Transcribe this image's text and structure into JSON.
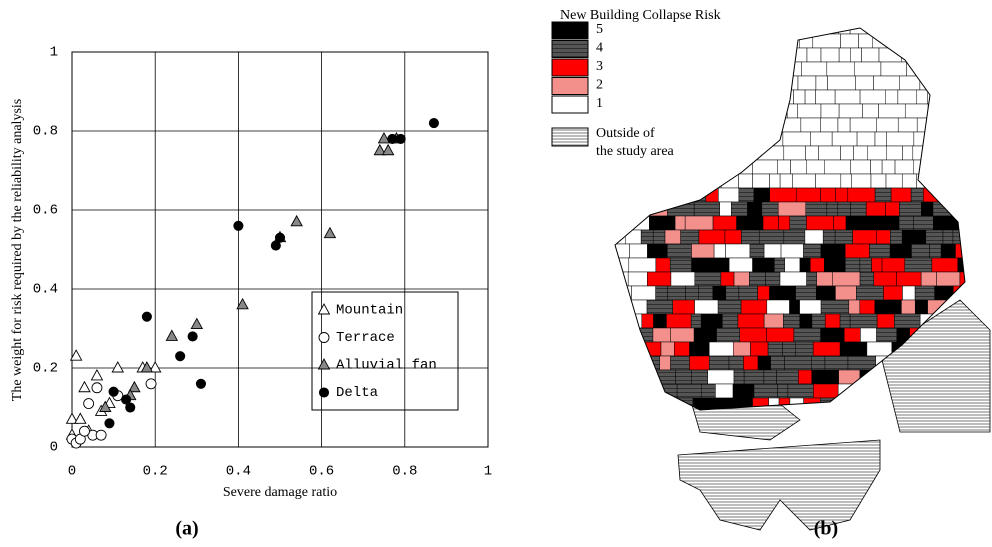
{
  "chart_data": {
    "type": "scatter",
    "xlabel": "Severe damage ratio",
    "ylabel": "The weight for risk required by the reliability analysis",
    "xlim": [
      0,
      1
    ],
    "ylim": [
      0,
      1
    ],
    "xticks": [
      0,
      0.2,
      0.4,
      0.6,
      0.8,
      1
    ],
    "yticks": [
      0,
      0.2,
      0.4,
      0.6,
      0.8,
      1
    ],
    "grid": true,
    "legend": "lower right",
    "series": [
      {
        "name": "Mountain",
        "marker": "triangle-open",
        "color": "#000000",
        "x": [
          0.01,
          0,
          0.02,
          0.03,
          0.06,
          0.11,
          0.17,
          0.2,
          0.09,
          0.07,
          0,
          0.04
        ],
        "values": [
          0.23,
          0.07,
          0.07,
          0.15,
          0.18,
          0.2,
          0.2,
          0.2,
          0.11,
          0.09,
          0.03,
          0.04
        ]
      },
      {
        "name": "Terrace",
        "marker": "circle-open",
        "color": "#000000",
        "x": [
          0,
          0.01,
          0.02,
          0.04,
          0.06,
          0.05,
          0.07,
          0.11,
          0.19,
          0.03
        ],
        "values": [
          0.02,
          0.01,
          0.02,
          0.11,
          0.15,
          0.03,
          0.03,
          0.13,
          0.16,
          0.04
        ]
      },
      {
        "name": "Alluvial fan",
        "marker": "triangle-filled",
        "color": "#888888",
        "x": [
          0.74,
          0.75,
          0.76,
          0.78,
          0.54,
          0.62,
          0.5,
          0.41,
          0.3,
          0.24,
          0.18,
          0.15,
          0.14,
          0.08
        ],
        "values": [
          0.75,
          0.78,
          0.75,
          0.78,
          0.57,
          0.54,
          0.53,
          0.36,
          0.31,
          0.28,
          0.2,
          0.15,
          0.13,
          0.1
        ]
      },
      {
        "name": "Delta",
        "marker": "circle-filled",
        "color": "#000000",
        "x": [
          0.87,
          0.79,
          0.77,
          0.4,
          0.5,
          0.49,
          0.18,
          0.26,
          0.29,
          0.31,
          0.1,
          0.13,
          0.14,
          0.09
        ],
        "values": [
          0.82,
          0.78,
          0.78,
          0.56,
          0.53,
          0.51,
          0.33,
          0.23,
          0.28,
          0.16,
          0.14,
          0.12,
          0.1,
          0.06
        ]
      }
    ]
  },
  "map": {
    "title": "New Building Collapse Risk",
    "legend": [
      {
        "label": "5",
        "color": "#000000"
      },
      {
        "label": "4",
        "color": "#555555"
      },
      {
        "label": "3",
        "color": "#ff0000"
      },
      {
        "label": "2",
        "color": "#f4908c"
      },
      {
        "label": "1",
        "color": "#ffffff"
      }
    ],
    "outside": [
      "Outside of",
      "the study area"
    ]
  },
  "captions": [
    "(a)",
    "(b)"
  ]
}
